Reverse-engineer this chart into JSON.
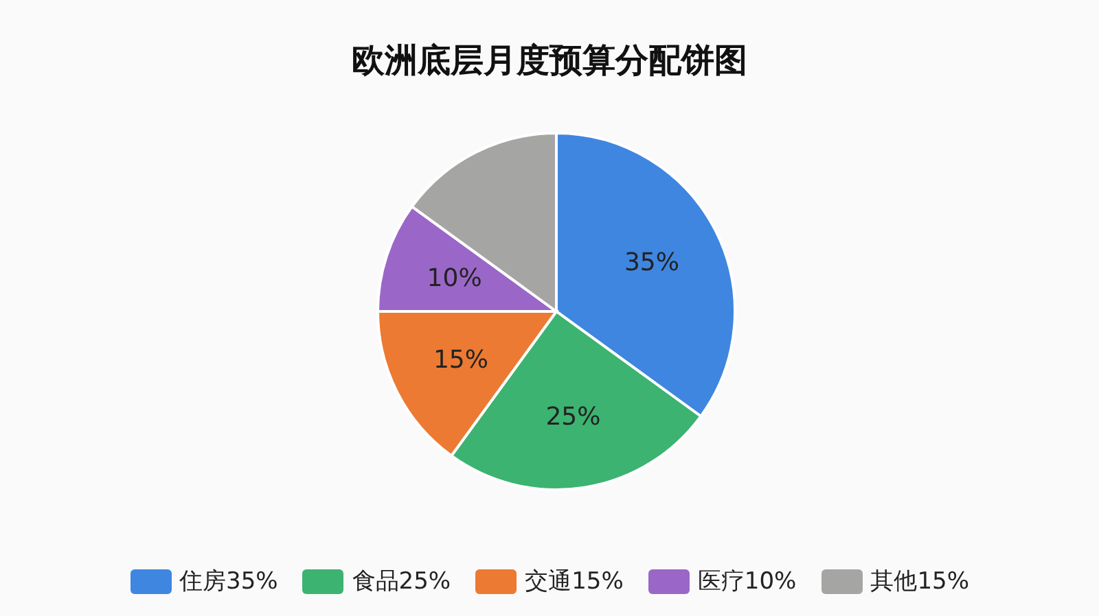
{
  "chart_data": {
    "type": "pie",
    "title": "欧洲底层月度预算分配饼图",
    "categories": [
      "住房35%",
      "食品25%",
      "交通15%",
      "医疗10%",
      "其他15%"
    ],
    "values": [
      35,
      25,
      15,
      10,
      15
    ],
    "colors": [
      "#3f86e0",
      "#3cb371",
      "#ec7a32",
      "#9a67c8",
      "#a5a5a3"
    ],
    "value_labels": [
      "35%",
      "25%",
      "15%",
      "10%",
      null
    ],
    "legend": "bottom"
  }
}
